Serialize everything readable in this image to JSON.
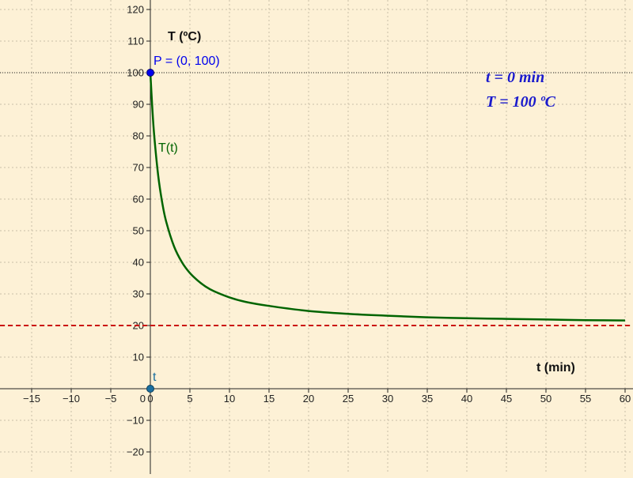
{
  "app": {
    "background": "#fdf1d6"
  },
  "chart_data": {
    "type": "line",
    "title": "",
    "xlabel": "t (min)",
    "ylabel": "T (ºC)",
    "xlim": [
      -19,
      61
    ],
    "ylim": [
      -27,
      123
    ],
    "grid": true,
    "x_ticks": [
      -15,
      -10,
      -5,
      0,
      5,
      10,
      15,
      20,
      25,
      30,
      35,
      40,
      45,
      50,
      55,
      60
    ],
    "y_ticks": [
      -20,
      -10,
      10,
      20,
      30,
      40,
      50,
      60,
      70,
      80,
      90,
      100,
      110,
      120
    ],
    "series": [
      {
        "name": "T(t)",
        "color": "#006400",
        "x": [
          0,
          0.25,
          0.5,
          1,
          1.5,
          2,
          3,
          4,
          5,
          6,
          7,
          8,
          10,
          12,
          15,
          20,
          25,
          30,
          35,
          40,
          45,
          50,
          55,
          60
        ],
        "y": [
          100,
          88.7,
          79.8,
          67.3,
          58.9,
          52.9,
          45.0,
          40.0,
          36.6,
          34.2,
          32.3,
          30.9,
          28.9,
          27.5,
          26.2,
          24.6,
          23.7,
          23.1,
          22.6,
          22.3,
          22.1,
          21.9,
          21.7,
          21.6
        ]
      }
    ],
    "asymptote": {
      "y": 20,
      "color": "#cc1111",
      "style": "dashed"
    },
    "reference_line": {
      "y": 100,
      "color": "#222222",
      "style": "dotted"
    },
    "points": [
      {
        "label": "P = (0, 100)",
        "x": 0,
        "y": 100,
        "color": "#0000ee"
      },
      {
        "label": "t",
        "x": 0,
        "y": 0,
        "color": "#1a6fa0"
      }
    ],
    "annotations": {
      "time": "t = 0 min",
      "temperature": "T = 100 ºC",
      "color": "#1a1acc"
    }
  }
}
